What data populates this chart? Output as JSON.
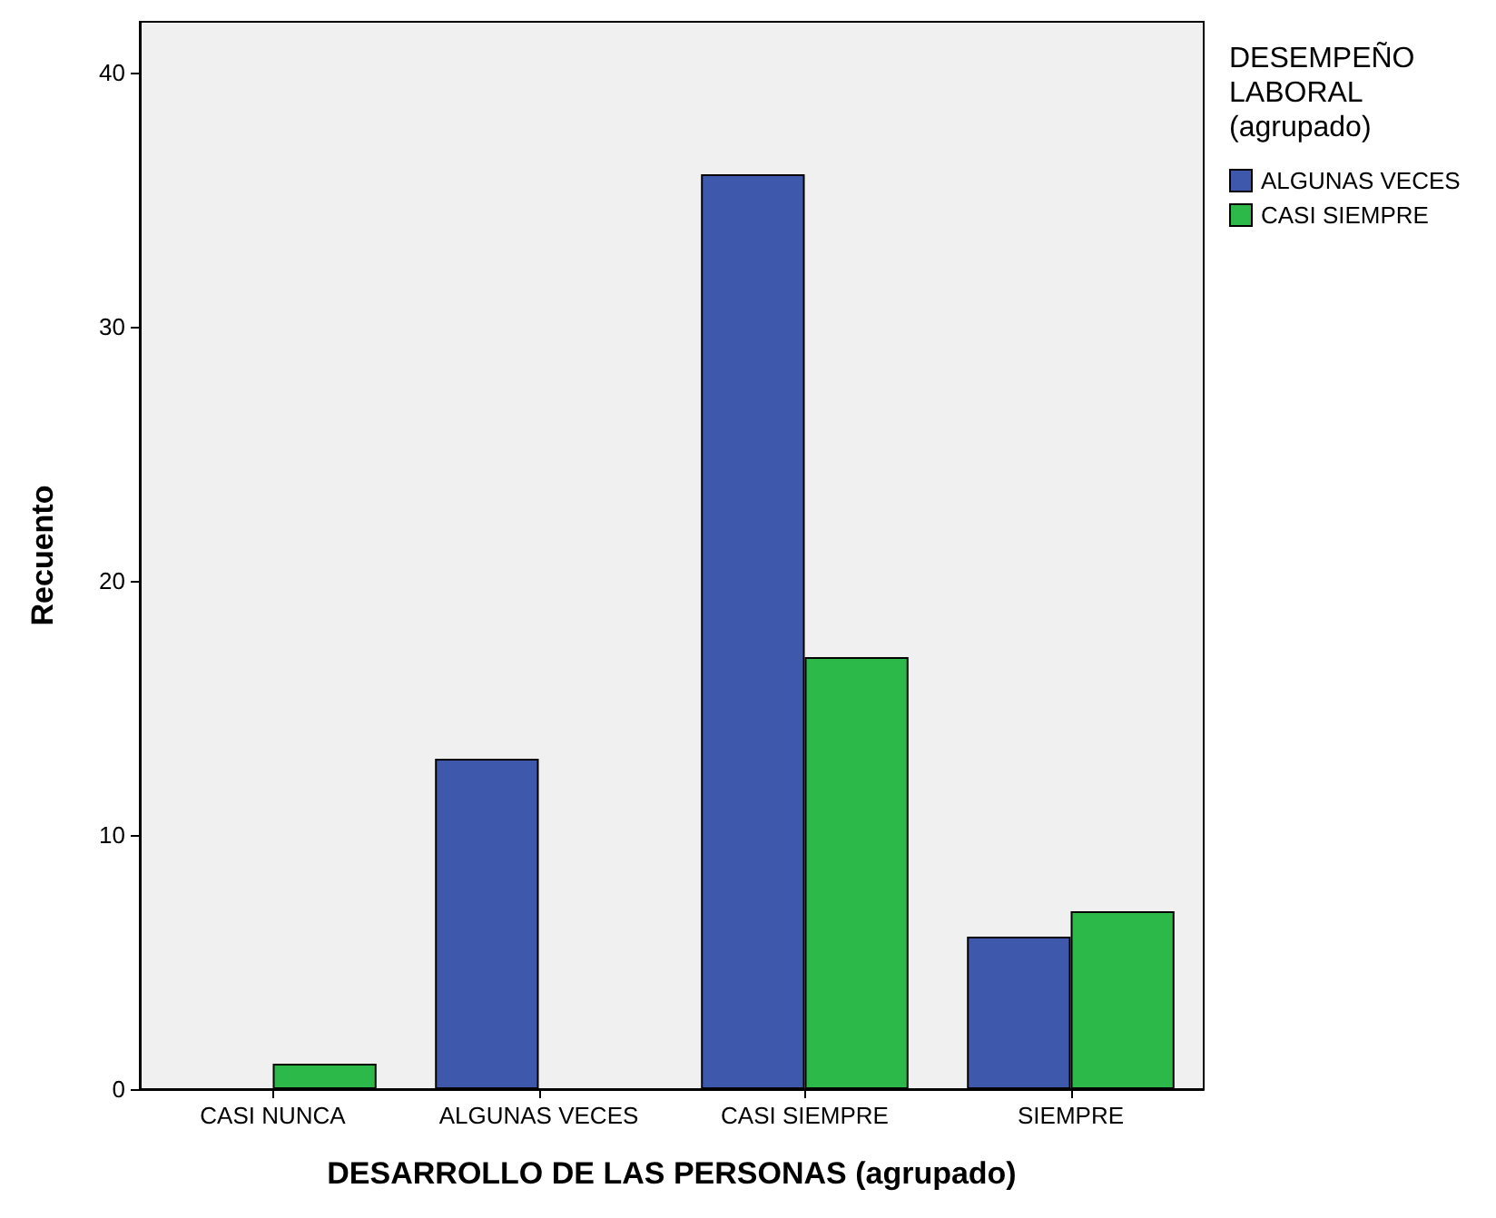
{
  "chart_data": {
    "type": "bar",
    "xlabel": "DESARROLLO DE LAS PERSONAS (agrupado)",
    "ylabel": "Recuento",
    "legend_title": "DESEMPEÑO LABORAL (agrupado)",
    "categories": [
      "CASI NUNCA",
      "ALGUNAS VECES",
      "CASI SIEMPRE",
      "SIEMPRE"
    ],
    "series": [
      {
        "name": "ALGUNAS VECES",
        "color": "#3e58ac",
        "values": [
          null,
          13,
          36,
          6
        ]
      },
      {
        "name": "CASI SIEMPRE",
        "color": "#2db84a",
        "values": [
          1,
          null,
          17,
          7
        ]
      }
    ],
    "ylim": [
      0,
      42
    ],
    "yticks": [
      0,
      10,
      20,
      30,
      40
    ],
    "grid": false,
    "legend": "top right"
  }
}
